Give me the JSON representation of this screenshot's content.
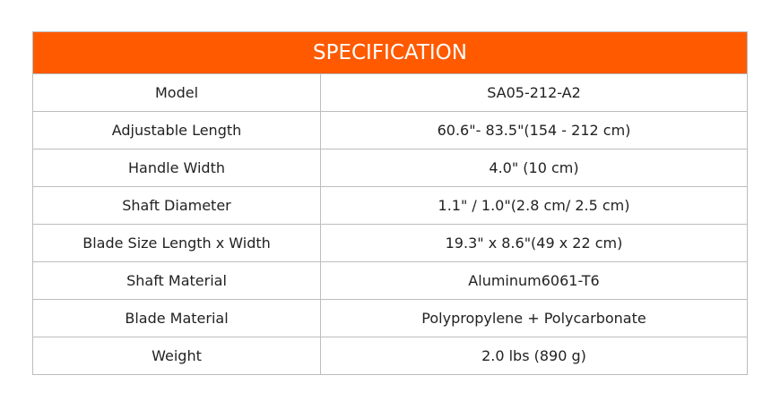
{
  "title": "SPECIFICATION",
  "accent": "#ff5a00",
  "rows": [
    {
      "label": "Model",
      "value": "SA05-212-A2"
    },
    {
      "label": "Adjustable Length",
      "value": "60.6\"- 83.5\"(154 - 212 cm)"
    },
    {
      "label": "Handle Width",
      "value": "4.0\" (10 cm)"
    },
    {
      "label": "Shaft Diameter",
      "value": "1.1\" / 1.0\"(2.8 cm/ 2.5 cm)"
    },
    {
      "label": "Blade Size Length x Width",
      "value": "19.3\" x 8.6\"(49 x 22 cm)"
    },
    {
      "label": "Shaft Material",
      "value": "Aluminum6061-T6"
    },
    {
      "label": "Blade Material",
      "value": "Polypropylene + Polycarbonate"
    },
    {
      "label": "Weight",
      "value": "2.0 lbs (890 g)"
    }
  ]
}
